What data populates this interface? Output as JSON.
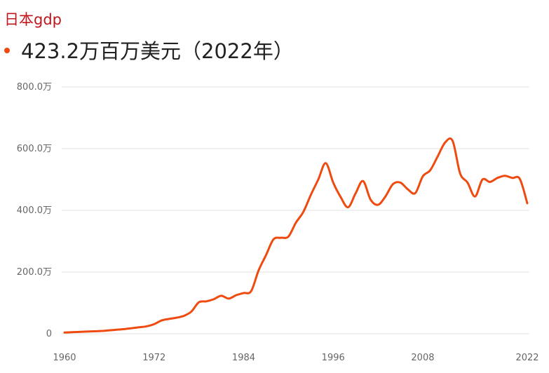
{
  "title": "日本gdp",
  "headline": {
    "value_text": "423.2万百万美元（2022年）"
  },
  "colors": {
    "title": "#c0171d",
    "series": "#ef4a0f",
    "grid": "#e2e2e2",
    "axis_text": "#666666"
  },
  "chart_data": {
    "type": "line",
    "title": "日本gdp",
    "xlabel": "",
    "ylabel": "",
    "xlim": [
      1960,
      2022
    ],
    "ylim": [
      0,
      800
    ],
    "grid": true,
    "y_ticks": [
      {
        "value": 0,
        "label": "0"
      },
      {
        "value": 200,
        "label": "200.0万"
      },
      {
        "value": 400,
        "label": "400.0万"
      },
      {
        "value": 600,
        "label": "600.0万"
      },
      {
        "value": 800,
        "label": "800.0万"
      }
    ],
    "x_ticks": [
      {
        "value": 1960,
        "label": "1960"
      },
      {
        "value": 1972,
        "label": "1972"
      },
      {
        "value": 1984,
        "label": "1984"
      },
      {
        "value": 1996,
        "label": "1996"
      },
      {
        "value": 2008,
        "label": "2008"
      },
      {
        "value": 2022,
        "label": "2022"
      }
    ],
    "series": [
      {
        "x": [
          1960,
          1961,
          1962,
          1963,
          1964,
          1965,
          1966,
          1967,
          1968,
          1969,
          1970,
          1971,
          1972,
          1973,
          1974,
          1975,
          1976,
          1977,
          1978,
          1979,
          1980,
          1981,
          1982,
          1983,
          1984,
          1985,
          1986,
          1987,
          1988,
          1989,
          1990,
          1991,
          1992,
          1993,
          1994,
          1995,
          1996,
          1997,
          1998,
          1999,
          2000,
          2001,
          2002,
          2003,
          2004,
          2005,
          2006,
          2007,
          2008,
          2009,
          2010,
          2011,
          2012,
          2013,
          2014,
          2015,
          2016,
          2017,
          2018,
          2019,
          2020,
          2021,
          2022
        ],
        "values": [
          4,
          5,
          6,
          7,
          8,
          9,
          11,
          13,
          15,
          18,
          21,
          24,
          31,
          43,
          48,
          52,
          58,
          72,
          102,
          105,
          112,
          123,
          114,
          125,
          132,
          138,
          205,
          255,
          306,
          311,
          315,
          360,
          395,
          450,
          500,
          553,
          490,
          443,
          410,
          455,
          495,
          435,
          418,
          445,
          485,
          490,
          468,
          456,
          510,
          530,
          575,
          620,
          625,
          520,
          490,
          445,
          500,
          492,
          505,
          512,
          505,
          502,
          423
        ]
      }
    ]
  }
}
